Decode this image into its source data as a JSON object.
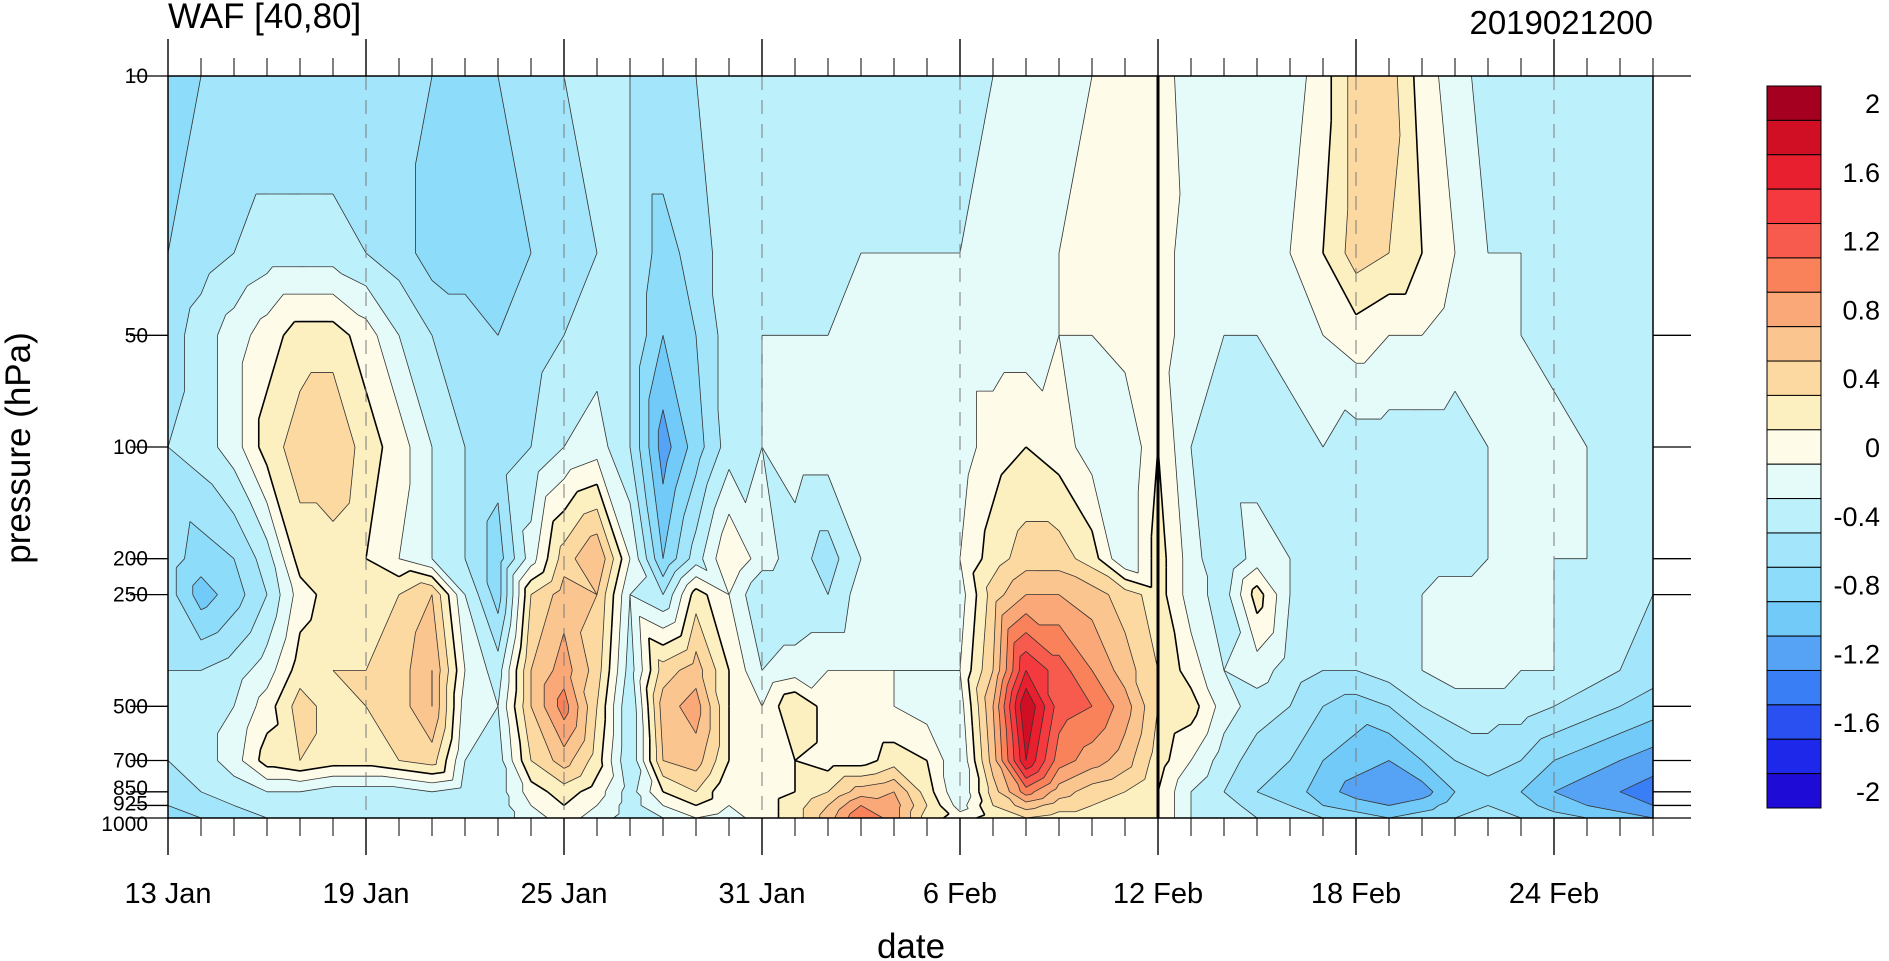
{
  "chart_data": {
    "type": "heatmap",
    "title_left": "WAF [40,80]",
    "title_right": "2019021200",
    "xlabel": "date",
    "ylabel": "pressure (hPa)",
    "x_tick_labels": [
      "13 Jan",
      "19 Jan",
      "25 Jan",
      "31 Jan",
      "6 Feb",
      "12 Feb",
      "18 Feb",
      "24 Feb"
    ],
    "x_range": [
      "13 Jan",
      "27 Feb"
    ],
    "y_tick_labels": [
      "10",
      "50",
      "100",
      "200",
      "250",
      "500",
      "700",
      "850",
      "925",
      "1000"
    ],
    "y_range": [
      1000,
      10
    ],
    "y_scale": "log",
    "reference_line": "12 Feb",
    "dashed_vertical_gridlines": true,
    "colorbar": {
      "label_values": [
        "2",
        "1.6",
        "1.2",
        "0.8",
        "0.4",
        "0",
        "-0.4",
        "-0.8",
        "-1.2",
        "-1.6",
        "-2"
      ],
      "levels": [
        -2.2,
        -2.0,
        -1.8,
        -1.6,
        -1.4,
        -1.2,
        -1.0,
        -0.8,
        -0.6,
        -0.4,
        -0.2,
        0,
        0.2,
        0.4,
        0.6,
        0.8,
        1.0,
        1.2,
        1.4,
        1.6,
        1.8,
        2.0,
        2.2
      ],
      "colors": [
        "#1e0bd6",
        "#1d28eb",
        "#2b50f2",
        "#3a7ef5",
        "#56a3f6",
        "#72caf8",
        "#8cdcfa",
        "#a3e6fb",
        "#bcf0fb",
        "#e4fbfa",
        "#fefce8",
        "#fdf0c0",
        "#fcd9a0",
        "#fbc590",
        "#fba878",
        "#f9825a",
        "#f65b4e",
        "#f43a3e",
        "#e81f2e",
        "#d00e24",
        "#a5001f"
      ]
    },
    "days": [
      "13 Jan",
      "14 Jan",
      "15 Jan",
      "16 Jan",
      "17 Jan",
      "18 Jan",
      "19 Jan",
      "20 Jan",
      "21 Jan",
      "22 Jan",
      "23 Jan",
      "24 Jan",
      "25 Jan",
      "26 Jan",
      "27 Jan",
      "28 Jan",
      "29 Jan",
      "30 Jan",
      "31 Jan",
      "1 Feb",
      "2 Feb",
      "3 Feb",
      "4 Feb",
      "5 Feb",
      "6 Feb",
      "7 Feb",
      "8 Feb",
      "9 Feb",
      "10 Feb",
      "11 Feb",
      "12 Feb",
      "13 Feb",
      "14 Feb",
      "15 Feb",
      "16 Feb",
      "17 Feb",
      "18 Feb",
      "19 Feb",
      "20 Feb",
      "21 Feb",
      "22 Feb",
      "23 Feb",
      "24 Feb",
      "25 Feb",
      "26 Feb",
      "27 Feb"
    ],
    "pressure_levels": [
      10,
      30,
      50,
      100,
      200,
      250,
      400,
      500,
      700,
      850,
      925,
      1000
    ],
    "values": [
      [
        -0.9,
        -0.8,
        -0.8,
        -0.8,
        -0.8,
        -0.8,
        -0.7,
        -0.7,
        -0.8,
        -0.8,
        -0.8,
        -0.7,
        -0.6,
        -0.6,
        -0.6,
        -0.6,
        -0.6,
        -0.5,
        -0.5,
        -0.5,
        -0.5,
        -0.5,
        -0.5,
        -0.5,
        -0.5,
        -0.4,
        -0.4,
        -0.3,
        -0.2,
        -0.1,
        0.0,
        -0.4,
        -0.4,
        -0.4,
        -0.3,
        -0.1,
        0.3,
        0.3,
        -0.1,
        -0.3,
        -0.5,
        -0.5,
        -0.5,
        -0.6,
        -0.6,
        -0.6
      ],
      [
        -0.8,
        -0.7,
        -0.6,
        -0.5,
        -0.5,
        -0.5,
        -0.6,
        -0.7,
        -0.9,
        -0.9,
        -0.9,
        -0.8,
        -0.7,
        -0.6,
        -0.6,
        -0.9,
        -0.7,
        -0.5,
        -0.5,
        -0.5,
        -0.5,
        -0.4,
        -0.4,
        -0.4,
        -0.4,
        -0.3,
        -0.3,
        -0.2,
        -0.1,
        0.0,
        -0.1,
        -0.3,
        -0.4,
        -0.4,
        -0.2,
        0.0,
        0.3,
        0.2,
        0.0,
        -0.2,
        -0.4,
        -0.4,
        -0.5,
        -0.5,
        -0.6,
        -0.6
      ],
      [
        -0.7,
        -0.5,
        -0.3,
        -0.1,
        0.1,
        0.1,
        -0.1,
        -0.4,
        -0.6,
        -0.7,
        -0.8,
        -0.7,
        -0.6,
        -0.5,
        -0.6,
        -1.0,
        -0.8,
        -0.5,
        -0.4,
        -0.4,
        -0.4,
        -0.3,
        -0.3,
        -0.3,
        -0.3,
        -0.3,
        -0.3,
        -0.2,
        -0.2,
        -0.1,
        -0.1,
        -0.3,
        -0.4,
        -0.4,
        -0.3,
        -0.2,
        -0.1,
        -0.2,
        -0.2,
        -0.3,
        -0.4,
        -0.4,
        -0.5,
        -0.5,
        -0.6,
        -0.6
      ],
      [
        -0.6,
        -0.5,
        -0.3,
        0.1,
        0.3,
        0.4,
        0.1,
        -0.1,
        -0.4,
        -0.6,
        -0.7,
        -0.6,
        -0.4,
        -0.3,
        -0.6,
        -1.3,
        -0.9,
        -0.5,
        -0.4,
        -0.3,
        -0.3,
        -0.3,
        -0.3,
        -0.3,
        -0.3,
        -0.1,
        0.0,
        -0.1,
        -0.3,
        -0.4,
        0.0,
        -0.4,
        -0.5,
        -0.5,
        -0.5,
        -0.4,
        -0.5,
        -0.5,
        -0.5,
        -0.5,
        -0.4,
        -0.3,
        -0.3,
        -0.4,
        -0.5,
        -0.6
      ],
      [
        -0.7,
        -0.9,
        -0.8,
        -0.5,
        0.1,
        0.1,
        0.0,
        -0.2,
        -0.4,
        -0.6,
        -0.9,
        -0.3,
        0.3,
        0.6,
        -0.2,
        -1.0,
        -0.5,
        0.0,
        -0.3,
        -0.5,
        -0.7,
        -0.4,
        -0.3,
        -0.3,
        -0.2,
        0.1,
        0.3,
        0.3,
        0.1,
        -0.4,
        0.1,
        -0.3,
        -0.6,
        -0.3,
        -0.4,
        -0.5,
        -0.5,
        -0.5,
        -0.5,
        -0.5,
        -0.4,
        -0.4,
        -0.4,
        -0.4,
        -0.5,
        -0.6
      ],
      [
        -0.7,
        -1.1,
        -0.9,
        -0.6,
        -0.1,
        0.1,
        0.1,
        0.2,
        0.4,
        -0.4,
        -0.9,
        0.2,
        0.5,
        0.4,
        -0.4,
        -0.6,
        0.1,
        -0.2,
        -0.6,
        -0.6,
        -0.6,
        -0.3,
        -0.3,
        -0.3,
        -0.3,
        0.3,
        0.6,
        0.6,
        0.5,
        0.3,
        0.1,
        -0.3,
        -0.5,
        0.1,
        -0.4,
        -0.5,
        -0.5,
        -0.5,
        -0.4,
        -0.3,
        -0.3,
        -0.4,
        -0.4,
        -0.5,
        -0.5,
        -0.6
      ],
      [
        -0.6,
        -0.6,
        -0.5,
        -0.3,
        0.1,
        0.2,
        0.2,
        0.3,
        0.6,
        -0.2,
        -0.5,
        0.4,
        0.7,
        0.3,
        -0.5,
        0.3,
        0.5,
        0.0,
        -0.4,
        -0.3,
        -0.2,
        -0.2,
        -0.2,
        -0.2,
        -0.2,
        0.4,
        1.4,
        1.1,
        0.8,
        0.5,
        0.2,
        -0.1,
        -0.4,
        -0.3,
        -0.5,
        -0.6,
        -0.6,
        -0.5,
        -0.4,
        -0.3,
        -0.3,
        -0.4,
        -0.4,
        -0.5,
        -0.6,
        -0.7
      ],
      [
        -0.6,
        -0.5,
        -0.4,
        -0.1,
        0.3,
        0.1,
        0.2,
        0.3,
        0.6,
        -0.3,
        -0.4,
        0.4,
        0.9,
        0.2,
        -0.6,
        0.5,
        0.7,
        0.0,
        -0.2,
        0.2,
        -0.1,
        -0.2,
        -0.2,
        -0.3,
        -0.3,
        0.6,
        1.8,
        1.1,
        1.0,
        0.7,
        0.2,
        0.1,
        -0.3,
        -0.5,
        -0.6,
        -0.8,
        -0.9,
        -0.8,
        -0.6,
        -0.5,
        -0.5,
        -0.5,
        -0.6,
        -0.7,
        -0.8,
        -0.9
      ],
      [
        -0.6,
        -0.5,
        -0.3,
        0.1,
        0.2,
        0.1,
        0.1,
        0.2,
        0.3,
        -0.4,
        -0.5,
        0.2,
        0.5,
        0.1,
        -0.6,
        0.4,
        0.5,
        0.0,
        -0.1,
        0.0,
        -0.1,
        -0.1,
        0.1,
        0.0,
        -0.4,
        0.5,
        1.6,
        0.9,
        0.7,
        0.5,
        0.1,
        -0.2,
        -0.5,
        -0.7,
        -0.8,
        -1.0,
        -1.1,
        -1.2,
        -1.0,
        -0.8,
        -0.7,
        -0.8,
        -1.0,
        -1.1,
        -1.2,
        -1.3
      ],
      [
        -0.7,
        -0.6,
        -0.5,
        -0.4,
        -0.4,
        -0.5,
        -0.5,
        -0.5,
        -0.4,
        -0.5,
        -0.5,
        -0.1,
        0.1,
        -0.1,
        -0.5,
        0.0,
        0.2,
        -0.2,
        -0.1,
        0.0,
        0.2,
        0.5,
        0.6,
        0.1,
        -0.4,
        0.3,
        0.9,
        0.5,
        0.3,
        0.2,
        0.0,
        -0.4,
        -0.6,
        -0.8,
        -0.9,
        -1.1,
        -1.3,
        -1.4,
        -1.3,
        -1.0,
        -0.9,
        -1.0,
        -1.2,
        -1.3,
        -1.4,
        -1.5
      ],
      [
        -0.8,
        -0.7,
        -0.6,
        -0.5,
        -0.5,
        -0.5,
        -0.6,
        -0.6,
        -0.5,
        -0.6,
        -0.5,
        -0.2,
        0.0,
        -0.2,
        -0.5,
        -0.2,
        0.0,
        -0.2,
        -0.1,
        0.1,
        0.4,
        0.8,
        0.7,
        0.2,
        -0.3,
        0.2,
        0.5,
        0.3,
        0.2,
        0.1,
        0.0,
        -0.4,
        -0.5,
        -0.7,
        -0.8,
        -1.0,
        -1.1,
        -1.2,
        -1.1,
        -0.9,
        -0.8,
        -0.9,
        -1.1,
        -1.2,
        -1.3,
        -1.4
      ],
      [
        -1.0,
        -0.8,
        -0.7,
        -0.6,
        -0.6,
        -0.6,
        -0.6,
        -0.6,
        -0.6,
        -0.6,
        -0.5,
        -0.3,
        -0.1,
        -0.3,
        -0.5,
        -0.4,
        -0.2,
        -0.3,
        -0.1,
        0.1,
        0.5,
        1.0,
        0.7,
        0.1,
        -0.1,
        0.1,
        0.2,
        0.1,
        0.1,
        0.0,
        0.0,
        -0.4,
        -0.5,
        -0.6,
        -0.7,
        -0.8,
        -0.9,
        -1.0,
        -0.9,
        -0.8,
        -0.7,
        -0.8,
        -0.9,
        -1.0,
        -1.1,
        -1.2
      ]
    ]
  }
}
